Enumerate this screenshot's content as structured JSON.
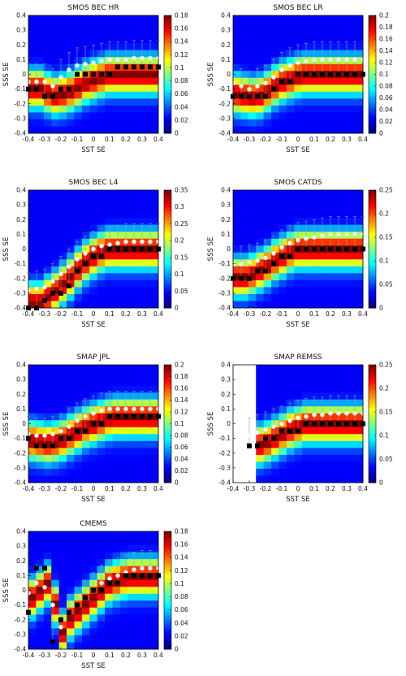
{
  "chart_data": [
    {
      "type": "heatmap",
      "title": "SMOS BEC HR",
      "xlabel": "SST SE",
      "ylabel": "SSS SE",
      "xlim": [
        -0.4,
        0.4
      ],
      "ylim": [
        -0.4,
        0.4
      ],
      "xticks": [
        "-0.4",
        "-0.3",
        "-0.2",
        "-0.1",
        "0",
        "0.1",
        "0.2",
        "0.3",
        "0.4"
      ],
      "yticks": [
        "0.4",
        "0.3",
        "0.2",
        "0.1",
        "0",
        "-0.1",
        "-0.2",
        "-0.3",
        "-0.4"
      ],
      "colorbar_ticks": [
        "0.18",
        "0.16",
        "0.14",
        "0.12",
        "0.1",
        "0.08",
        "0.06",
        "0.04",
        "0.02",
        "0"
      ],
      "colorbar_max": 0.18,
      "center": [
        -0.1,
        -0.1,
        -0.13,
        -0.15,
        -0.14,
        -0.12,
        -0.09,
        -0.06,
        -0.04,
        -0.02,
        0.0,
        0.0,
        0.0,
        0.0,
        0.0,
        0.0,
        0.0
      ],
      "white_points": {
        "x": [
          -0.4,
          -0.35,
          -0.3,
          -0.25,
          -0.2,
          -0.15,
          -0.1,
          -0.05,
          0,
          0.05,
          0.1,
          0.15,
          0.2,
          0.25,
          0.3,
          0.35,
          0.4
        ],
        "y": [
          -0.05,
          -0.05,
          -0.05,
          -0.08,
          -0.02,
          0.03,
          0.06,
          0.07,
          0.08,
          0.09,
          0.1,
          0.1,
          0.1,
          0.11,
          0.11,
          0.11,
          0.11
        ]
      },
      "black_points": {
        "x": [
          -0.4,
          -0.35,
          -0.3,
          -0.25,
          -0.2,
          -0.15,
          -0.1,
          -0.05,
          0,
          0.05,
          0.1,
          0.15,
          0.2,
          0.25,
          0.3,
          0.35,
          0.4
        ],
        "y": [
          -0.1,
          -0.1,
          -0.15,
          -0.15,
          -0.1,
          -0.1,
          0,
          0,
          0,
          0,
          0,
          0.05,
          0.05,
          0.05,
          0.05,
          0.05,
          0.05
        ]
      }
    },
    {
      "type": "heatmap",
      "title": "SMOS BEC LR",
      "xlabel": "SST SE",
      "ylabel": "SSS SE",
      "xlim": [
        -0.4,
        0.4
      ],
      "ylim": [
        -0.4,
        0.4
      ],
      "xticks": [
        "-0.4",
        "-0.3",
        "-0.2",
        "-0.1",
        "0",
        "0.1",
        "0.2",
        "0.3",
        "0.4"
      ],
      "yticks": [
        "0.4",
        "0.3",
        "0.2",
        "0.1",
        "0",
        "-0.1",
        "-0.2",
        "-0.3",
        "-0.4"
      ],
      "colorbar_ticks": [
        "0.2",
        "0.18",
        "0.16",
        "0.14",
        "0.12",
        "0.1",
        "0.08",
        "0.06",
        "0.04",
        "0.02",
        "0"
      ],
      "colorbar_max": 0.2,
      "center": [
        -0.14,
        -0.15,
        -0.16,
        -0.15,
        -0.12,
        -0.08,
        -0.05,
        -0.03,
        -0.01,
        0.0,
        0.0,
        0.0,
        0.0,
        0.0,
        0.0,
        0.0,
        0.0
      ],
      "white_points": {
        "x": [
          -0.4,
          -0.35,
          -0.3,
          -0.25,
          -0.2,
          -0.15,
          -0.1,
          -0.05,
          0,
          0.05,
          0.1,
          0.15,
          0.2,
          0.25,
          0.3,
          0.35,
          0.4
        ],
        "y": [
          -0.06,
          -0.08,
          -0.1,
          -0.08,
          -0.06,
          -0.02,
          0.03,
          0.06,
          0.08,
          0.09,
          0.1,
          0.1,
          0.1,
          0.1,
          0.1,
          0.1,
          0.1
        ]
      },
      "black_points": {
        "x": [
          -0.4,
          -0.35,
          -0.3,
          -0.25,
          -0.2,
          -0.15,
          -0.1,
          -0.05,
          0,
          0.05,
          0.1,
          0.15,
          0.2,
          0.25,
          0.3,
          0.35,
          0.4
        ],
        "y": [
          -0.15,
          -0.15,
          -0.15,
          -0.15,
          -0.15,
          -0.1,
          -0.05,
          -0.05,
          0,
          0,
          0,
          0,
          0,
          0,
          0,
          0,
          0
        ]
      }
    },
    {
      "type": "heatmap",
      "title": "SMOS BEC L4",
      "xlabel": "SST SE",
      "ylabel": "SSS SE",
      "xlim": [
        -0.4,
        0.4
      ],
      "ylim": [
        -0.4,
        0.4
      ],
      "xticks": [
        "-0.4",
        "-0.3",
        "-0.2",
        "-0.1",
        "0",
        "0.1",
        "0.2",
        "0.3",
        "0.4"
      ],
      "yticks": [
        "0.4",
        "0.3",
        "0.2",
        "0.1",
        "0",
        "-0.1",
        "-0.2",
        "-0.3",
        "-0.4"
      ],
      "colorbar_ticks": [
        "0.35",
        "0.3",
        "0.25",
        "0.2",
        "0.15",
        "0.1",
        "0.05",
        "0"
      ],
      "colorbar_max": 0.35,
      "center": [
        -0.38,
        -0.38,
        -0.34,
        -0.3,
        -0.25,
        -0.2,
        -0.14,
        -0.09,
        -0.05,
        -0.02,
        0.0,
        0.0,
        0.0,
        0.0,
        0.0,
        0.0,
        0.0
      ],
      "white_points": {
        "x": [
          -0.4,
          -0.35,
          -0.3,
          -0.25,
          -0.2,
          -0.15,
          -0.1,
          -0.05,
          0,
          0.05,
          0.1,
          0.15,
          0.2,
          0.25,
          0.3,
          0.35,
          0.4
        ],
        "y": [
          -0.28,
          -0.27,
          -0.26,
          -0.22,
          -0.17,
          -0.12,
          -0.07,
          -0.03,
          0,
          0.02,
          0.03,
          0.04,
          0.05,
          0.05,
          0.05,
          0.05,
          0.05
        ]
      },
      "black_points": {
        "x": [
          -0.4,
          -0.35,
          -0.3,
          -0.25,
          -0.2,
          -0.15,
          -0.1,
          -0.05,
          0,
          0.05,
          0.1,
          0.15,
          0.2,
          0.25,
          0.3,
          0.35,
          0.4
        ],
        "y": [
          -0.4,
          -0.4,
          -0.35,
          -0.3,
          -0.3,
          -0.25,
          -0.15,
          -0.1,
          -0.05,
          -0.05,
          0,
          0,
          0,
          0,
          0,
          0,
          0
        ]
      }
    },
    {
      "type": "heatmap",
      "title": "SMOS CATDS",
      "xlabel": "SST SE",
      "ylabel": "SSS SE",
      "xlim": [
        -0.4,
        0.4
      ],
      "ylim": [
        -0.4,
        0.4
      ],
      "xticks": [
        "-0.4",
        "-0.3",
        "-0.2",
        "-0.1",
        "0",
        "0.1",
        "0.2",
        "0.3",
        "0.4"
      ],
      "yticks": [
        "0.4",
        "0.3",
        "0.2",
        "0.1",
        "0",
        "-0.1",
        "-0.2",
        "-0.3",
        "-0.4"
      ],
      "colorbar_ticks": [
        "0.25",
        "0.2",
        "0.15",
        "0.1",
        "0.05",
        "0"
      ],
      "colorbar_max": 0.25,
      "center": [
        -0.2,
        -0.2,
        -0.18,
        -0.15,
        -0.12,
        -0.08,
        -0.05,
        -0.02,
        0.0,
        0.0,
        0.0,
        0.0,
        0.0,
        0.0,
        0.0,
        0.0,
        0.0
      ],
      "white_points": {
        "x": [
          -0.4,
          -0.35,
          -0.3,
          -0.25,
          -0.2,
          -0.15,
          -0.1,
          -0.05,
          0,
          0.05,
          0.1,
          0.15,
          0.2,
          0.25,
          0.3,
          0.35,
          0.4
        ],
        "y": [
          -0.1,
          -0.1,
          -0.09,
          -0.08,
          -0.06,
          -0.03,
          0.01,
          0.04,
          0.06,
          0.07,
          0.08,
          0.09,
          0.1,
          0.1,
          0.1,
          0.1,
          0.1
        ]
      },
      "black_points": {
        "x": [
          -0.4,
          -0.35,
          -0.3,
          -0.25,
          -0.2,
          -0.15,
          -0.1,
          -0.05,
          0,
          0.05,
          0.1,
          0.15,
          0.2,
          0.25,
          0.3,
          0.35,
          0.4
        ],
        "y": [
          -0.2,
          -0.2,
          -0.2,
          -0.15,
          -0.15,
          -0.1,
          -0.05,
          -0.05,
          0,
          0,
          0,
          0,
          0,
          0,
          0,
          0,
          0
        ]
      }
    },
    {
      "type": "heatmap",
      "title": "SMAP JPL",
      "xlabel": "SST SE",
      "ylabel": "SSS SE",
      "xlim": [
        -0.4,
        0.4
      ],
      "ylim": [
        -0.4,
        0.4
      ],
      "xticks": [
        "-0.4",
        "-0.3",
        "-0.2",
        "-0.1",
        "0",
        "0.1",
        "0.2",
        "0.3",
        "0.4"
      ],
      "yticks": [
        "0.4",
        "0.3",
        "0.2",
        "0.1",
        "0",
        "-0.1",
        "-0.2",
        "-0.3",
        "-0.4"
      ],
      "colorbar_ticks": [
        "0.2",
        "0.18",
        "0.16",
        "0.14",
        "0.12",
        "0.1",
        "0.08",
        "0.06",
        "0.04",
        "0.02",
        "0"
      ],
      "colorbar_max": 0.2,
      "center": [
        -0.12,
        -0.13,
        -0.14,
        -0.13,
        -0.11,
        -0.08,
        -0.05,
        -0.02,
        0.0,
        0.02,
        0.04,
        0.05,
        0.05,
        0.05,
        0.05,
        0.05,
        0.05
      ],
      "white_points": {
        "x": [
          -0.4,
          -0.35,
          -0.3,
          -0.25,
          -0.2,
          -0.15,
          -0.1,
          -0.05,
          0,
          0.05,
          0.1,
          0.15,
          0.2,
          0.25,
          0.3,
          0.35,
          0.4
        ],
        "y": [
          -0.07,
          -0.08,
          -0.08,
          -0.07,
          -0.05,
          -0.02,
          0.02,
          0.05,
          0.07,
          0.09,
          0.1,
          0.1,
          0.1,
          0.1,
          0.1,
          0.1,
          0.1
        ]
      },
      "black_points": {
        "x": [
          -0.4,
          -0.35,
          -0.3,
          -0.25,
          -0.2,
          -0.15,
          -0.1,
          -0.05,
          0,
          0.05,
          0.1,
          0.15,
          0.2,
          0.25,
          0.3,
          0.35,
          0.4
        ],
        "y": [
          -0.1,
          -0.15,
          -0.15,
          -0.15,
          -0.1,
          -0.1,
          -0.05,
          -0.05,
          0,
          0,
          0.05,
          0.05,
          0.05,
          0.05,
          0.05,
          0.05,
          0.05
        ]
      }
    },
    {
      "type": "heatmap",
      "title": "SMAP REMSS",
      "xlabel": "SST SE",
      "ylabel": "SSS SE",
      "xlim": [
        -0.4,
        0.4
      ],
      "ylim": [
        -0.4,
        0.4
      ],
      "xticks": [
        "-0.4",
        "-0.3",
        "-0.2",
        "-0.1",
        "0",
        "0.1",
        "0.2",
        "0.3",
        "0.4"
      ],
      "yticks": [
        "0.4",
        "0.3",
        "0.2",
        "0.1",
        "0",
        "-0.1",
        "-0.2",
        "-0.3",
        "-0.4"
      ],
      "colorbar_ticks": [
        "0.25",
        "0.2",
        "0.15",
        "0.1",
        "0.05",
        "0"
      ],
      "colorbar_max": 0.25,
      "blank_left_cols": 3,
      "center": [
        0,
        0,
        0,
        -0.15,
        -0.13,
        -0.1,
        -0.07,
        -0.04,
        -0.02,
        0.0,
        0.0,
        0.0,
        0.0,
        0.0,
        0.0,
        0.0,
        0.0
      ],
      "white_points": {
        "x": [
          -0.3,
          -0.25,
          -0.2,
          -0.15,
          -0.1,
          -0.05,
          0,
          0.05,
          0.1,
          0.15,
          0.2,
          0.25,
          0.3,
          0.35,
          0.4
        ],
        "y": [
          -0.08,
          -0.06,
          -0.04,
          -0.02,
          0.0,
          0.02,
          0.04,
          0.05,
          0.06,
          0.06,
          0.07,
          0.07,
          0.07,
          0.07,
          0.07
        ]
      },
      "black_points": {
        "x": [
          -0.3,
          -0.25,
          -0.2,
          -0.15,
          -0.1,
          -0.05,
          0,
          0.05,
          0.1,
          0.15,
          0.2,
          0.25,
          0.3,
          0.35,
          0.4
        ],
        "y": [
          -0.15,
          -0.15,
          -0.1,
          -0.1,
          -0.05,
          -0.05,
          -0.05,
          0,
          0,
          0,
          0,
          0,
          0,
          0,
          0
        ]
      }
    },
    {
      "type": "heatmap",
      "title": "CMEMS",
      "xlabel": "SST SE",
      "ylabel": "SSS SE",
      "xlim": [
        -0.4,
        0.4
      ],
      "ylim": [
        -0.4,
        0.4
      ],
      "xticks": [
        "-0.4",
        "-0.3",
        "-0.2",
        "-0.1",
        "0",
        "0.1",
        "0.2",
        "0.3",
        "0.4"
      ],
      "yticks": [
        "0.4",
        "0.3",
        "0.2",
        "0.1",
        "0",
        "-0.1",
        "-0.2",
        "-0.3",
        "-0.4"
      ],
      "colorbar_ticks": [
        "0.18",
        "0.16",
        "0.14",
        "0.12",
        "0.1",
        "0.08",
        "0.06",
        "0.04",
        "0.02",
        "0"
      ],
      "colorbar_max": 0.18,
      "center": [
        -0.05,
        0.0,
        0.05,
        -0.1,
        -0.3,
        -0.2,
        -0.15,
        -0.1,
        -0.05,
        0.0,
        0.05,
        0.07,
        0.09,
        0.1,
        0.1,
        0.1,
        0.1
      ],
      "white_points": {
        "x": [
          -0.4,
          -0.35,
          -0.3,
          -0.25,
          -0.2,
          -0.15,
          -0.1,
          -0.05,
          0,
          0.05,
          0.1,
          0.15,
          0.2,
          0.25,
          0.3,
          0.35,
          0.4
        ],
        "y": [
          -0.02,
          0.05,
          0.02,
          -0.1,
          -0.25,
          -0.15,
          -0.1,
          -0.05,
          0,
          0.05,
          0.08,
          0.1,
          0.12,
          0.14,
          0.15,
          0.15,
          0.15
        ]
      },
      "black_points": {
        "x": [
          -0.4,
          -0.35,
          -0.3,
          -0.25,
          -0.2,
          -0.15,
          -0.1,
          -0.05,
          0,
          0.05,
          0.1,
          0.15,
          0.2,
          0.25,
          0.3,
          0.35,
          0.4
        ],
        "y": [
          -0.15,
          0.15,
          0.15,
          -0.35,
          -0.2,
          -0.15,
          -0.1,
          -0.05,
          0,
          0,
          0.05,
          0.05,
          0.1,
          0.1,
          0.1,
          0.1,
          0.1
        ]
      }
    }
  ]
}
